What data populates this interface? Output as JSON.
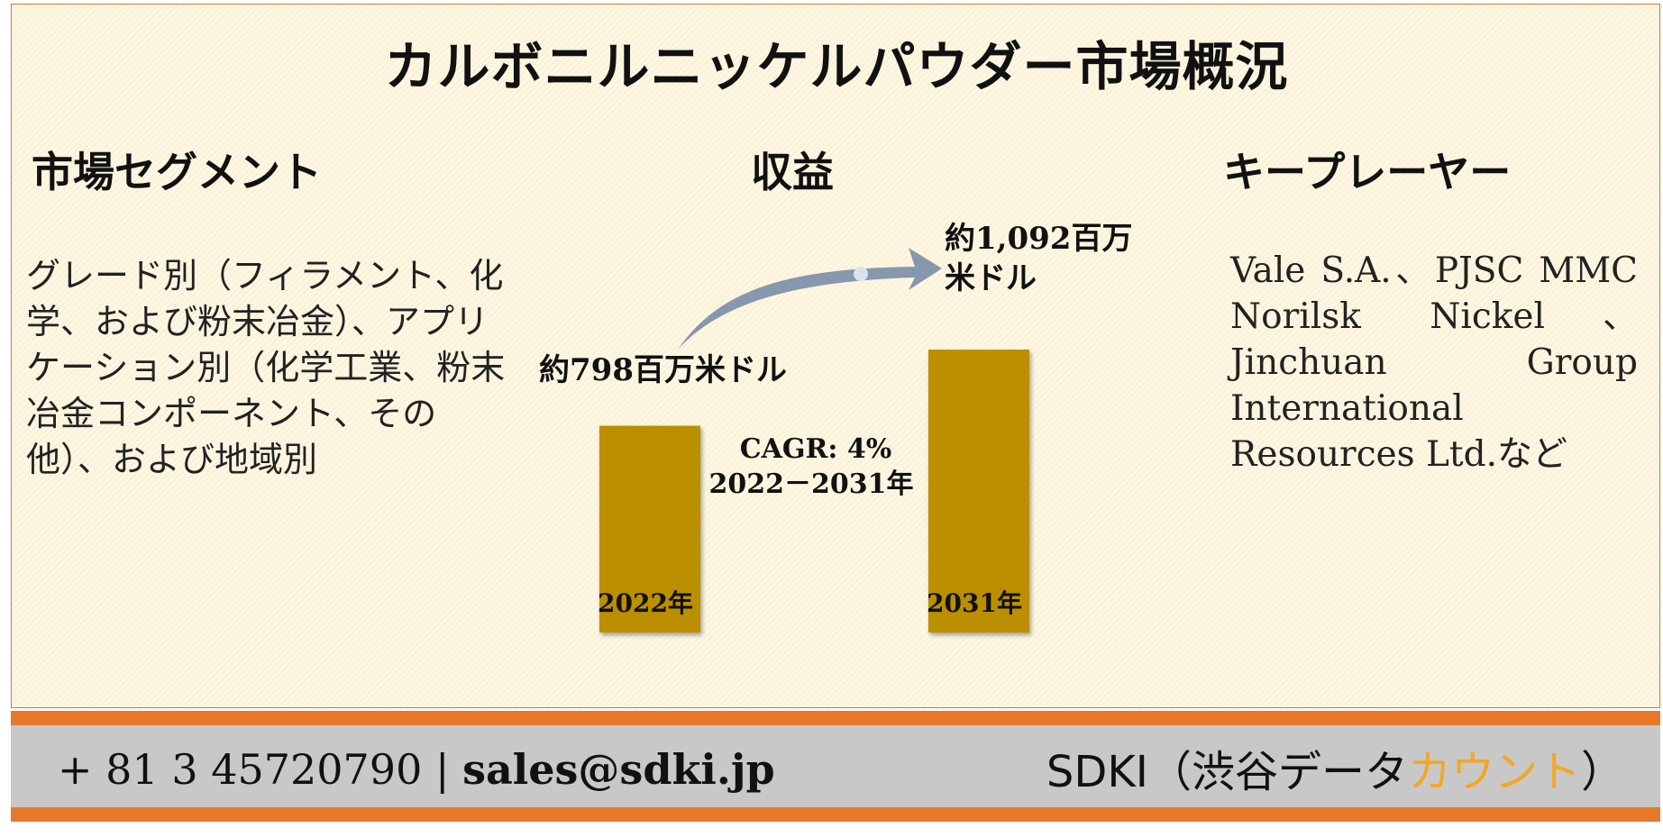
{
  "title": "カルボニルニッケルパウダー市場概況",
  "segments": {
    "heading": "市場セグメント",
    "text": "グレード別（フィラメント、化学、および粉末冶金）、アプリケーション別（化学工業、粉末冶金コンポーネント、その他）、および地域別"
  },
  "revenue": {
    "heading": "収益"
  },
  "players": {
    "heading": "キープレーヤー",
    "text": "Vale S.A.、PJSC MMC Norilsk Nickel、Jinchuan Group International Resources Ltd.など"
  },
  "chart_data": {
    "type": "bar",
    "categories": [
      "2022年",
      "2031年"
    ],
    "values": [
      798,
      1092
    ],
    "value_labels": [
      "約798百万米ドル",
      "約1,092百万米ドル"
    ],
    "cagr_text": [
      "CAGR: 4%",
      "2022－2031年"
    ],
    "bar_color": "#bb8f00",
    "arrow_color": "#8797ad"
  },
  "footer": {
    "phone": "+ 81 3 45720790",
    "separator": "|",
    "email": "sales@sdki.jp",
    "brand_prefix": "SDKI（渋谷データ",
    "brand_accent": "カウント",
    "brand_suffix": "）",
    "accent_color": "#f5a623",
    "bar_color": "#e8792b"
  }
}
